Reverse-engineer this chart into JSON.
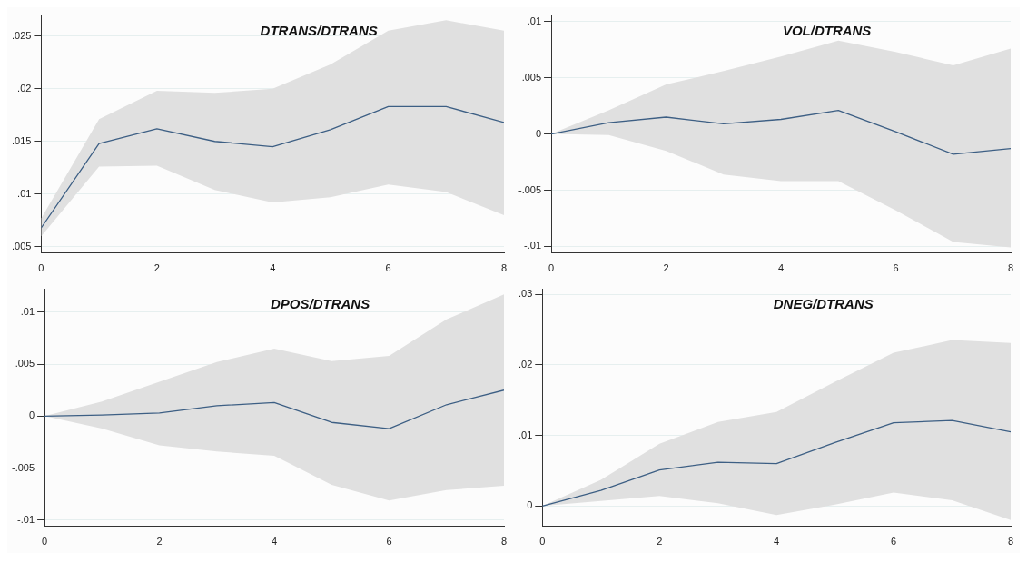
{
  "chart_data": [
    {
      "type": "line",
      "title": "DTRANS/DTRANS",
      "x": [
        0,
        1,
        2,
        3,
        4,
        5,
        6,
        7,
        8
      ],
      "xlim": [
        0,
        8
      ],
      "xticks": [
        0,
        2,
        4,
        6,
        8
      ],
      "ylim": [
        0.0044,
        0.0269
      ],
      "yticks": [
        {
          "value": 0.005,
          "label": ".005"
        },
        {
          "value": 0.01,
          "label": ".01"
        },
        {
          "value": 0.015,
          "label": ".015"
        },
        {
          "value": 0.02,
          "label": ".02"
        },
        {
          "value": 0.025,
          "label": ".025"
        }
      ],
      "grid": "y",
      "legend": false,
      "marker": "none",
      "line_style": "solid",
      "series": [
        {
          "color": "#3d5f84",
          "values": [
            0.0068,
            0.0148,
            0.0162,
            0.015,
            0.0145,
            0.0161,
            0.0183,
            0.0183,
            0.0168
          ],
          "lower": [
            0.006,
            0.0126,
            0.0127,
            0.0104,
            0.0092,
            0.0097,
            0.0109,
            0.0102,
            0.008
          ],
          "upper": [
            0.0077,
            0.0171,
            0.0198,
            0.0196,
            0.02,
            0.0223,
            0.0255,
            0.0265,
            0.0255
          ]
        }
      ]
    },
    {
      "type": "line",
      "title": "VOL/DTRANS",
      "x": [
        0,
        1,
        2,
        3,
        4,
        5,
        6,
        7,
        8
      ],
      "xlim": [
        0,
        8
      ],
      "xticks": [
        0,
        2,
        4,
        6,
        8
      ],
      "ylim": [
        -0.0106,
        0.0105
      ],
      "yticks": [
        {
          "value": -0.01,
          "label": "-.01"
        },
        {
          "value": -0.005,
          "label": "-.005"
        },
        {
          "value": 0,
          "label": "0"
        },
        {
          "value": 0.005,
          "label": ".005"
        },
        {
          "value": 0.01,
          "label": ".01"
        }
      ],
      "grid": "y",
      "legend": false,
      "marker": "none",
      "line_style": "solid",
      "series": [
        {
          "color": "#3d5f84",
          "values": [
            0,
            0.001,
            0.0015,
            0.0009,
            0.0013,
            0.0021,
            0.0002,
            -0.0018,
            -0.0013
          ],
          "lower": [
            0,
            -0.0001,
            -0.0015,
            -0.0036,
            -0.0042,
            -0.0042,
            -0.0068,
            -0.0096,
            -0.0101
          ],
          "upper": [
            0,
            0.0021,
            0.0044,
            0.0056,
            0.0069,
            0.0083,
            0.0073,
            0.0061,
            0.0076
          ]
        }
      ]
    },
    {
      "type": "line",
      "title": "DPOS/DTRANS",
      "x": [
        0,
        1,
        2,
        3,
        4,
        5,
        6,
        7,
        8
      ],
      "xlim": [
        0,
        8
      ],
      "xticks": [
        0,
        2,
        4,
        6,
        8
      ],
      "ylim": [
        -0.0106,
        0.0122
      ],
      "yticks": [
        {
          "value": -0.01,
          "label": "-.01"
        },
        {
          "value": -0.005,
          "label": "-.005"
        },
        {
          "value": 0,
          "label": "0"
        },
        {
          "value": 0.005,
          "label": ".005"
        },
        {
          "value": 0.01,
          "label": ".01"
        }
      ],
      "grid": "y",
      "legend": false,
      "marker": "none",
      "line_style": "solid",
      "series": [
        {
          "color": "#3d5f84",
          "values": [
            0,
            0.0001,
            0.0003,
            0.001,
            0.0013,
            -0.0006,
            -0.0012,
            0.0011,
            0.0025
          ],
          "lower": [
            0,
            -0.0012,
            -0.0028,
            -0.0034,
            -0.0038,
            -0.0066,
            -0.0081,
            -0.0071,
            -0.0067
          ],
          "upper": [
            0,
            0.0014,
            0.0033,
            0.0052,
            0.0065,
            0.0053,
            0.0058,
            0.0093,
            0.0117
          ]
        }
      ]
    },
    {
      "type": "line",
      "title": "DNEG/DTRANS",
      "x": [
        0,
        1,
        2,
        3,
        4,
        5,
        6,
        7,
        8
      ],
      "xlim": [
        0,
        8
      ],
      "xticks": [
        0,
        2,
        4,
        6,
        8
      ],
      "ylim": [
        -0.0029,
        0.0307
      ],
      "yticks": [
        {
          "value": 0,
          "label": "0"
        },
        {
          "value": 0.01,
          "label": ".01"
        },
        {
          "value": 0.02,
          "label": ".02"
        },
        {
          "value": 0.03,
          "label": ".03"
        }
      ],
      "grid": "y",
      "legend": false,
      "marker": "none",
      "line_style": "solid",
      "series": [
        {
          "color": "#3d5f84",
          "values": [
            0,
            0.0022,
            0.0051,
            0.0062,
            0.006,
            0.009,
            0.0118,
            0.0121,
            0.0105
          ],
          "lower": [
            0,
            0.0007,
            0.0014,
            0.0004,
            -0.0013,
            0.0002,
            0.0019,
            0.0008,
            -0.002
          ],
          "upper": [
            0,
            0.0037,
            0.0088,
            0.0119,
            0.0133,
            0.0176,
            0.0217,
            0.0235,
            0.0231
          ]
        }
      ]
    }
  ]
}
